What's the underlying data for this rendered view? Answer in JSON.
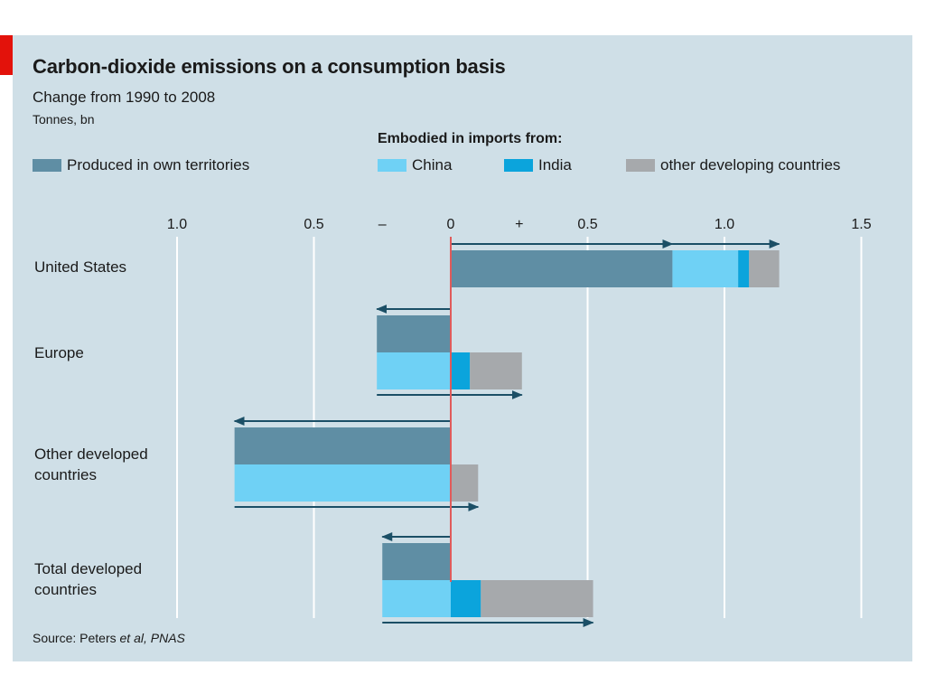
{
  "title": "Carbon-dioxide emissions on a consumption basis",
  "subtitle": "Change from 1990 to 2008",
  "units": "Tonnes, bn",
  "legend_heading": "Embodied in imports from:",
  "source_prefix": "Source: Peters ",
  "source_italic": "et al, PNAS",
  "colors": {
    "background": "#cfdfe7",
    "own": "#5f8ea4",
    "china": "#6fd1f5",
    "india": "#0ba4dc",
    "other": "#a6a9ac",
    "arrow": "#1b4f66",
    "zero_line": "#e05b5b",
    "grid": "#ffffff",
    "accent": "#e3120b"
  },
  "chart_data": {
    "type": "bar",
    "orientation": "horizontal",
    "x_axis": {
      "range": [
        -1.0,
        1.5
      ],
      "ticks": [
        -1.0,
        -0.5,
        0,
        0.5,
        1.0,
        1.5
      ],
      "tick_labels": [
        "1.0",
        "0.5",
        "0",
        "0.5",
        "1.0",
        "1.5"
      ],
      "sign_labels": [
        "–",
        "+"
      ]
    },
    "grid": true,
    "legend_position": "top",
    "series_names": {
      "own": "Produced in own territories",
      "china": "China",
      "india": "India",
      "other": "other developing countries"
    },
    "rows": [
      {
        "label": "United States",
        "own": 0.81,
        "china": 0.24,
        "india": 0.04,
        "other": 0.11,
        "stacked": true
      },
      {
        "label": "Europe",
        "own": -0.27,
        "china": -0.27,
        "india": 0.07,
        "other": 0.19,
        "stacked": false
      },
      {
        "label": "Other developed\ncountries",
        "own": -0.79,
        "china": -0.79,
        "india": 0.0,
        "other": 0.1,
        "stacked": false
      },
      {
        "label": "Total developed\ncountries",
        "own": -0.25,
        "china": -0.25,
        "india": 0.11,
        "other": 0.41,
        "stacked": false
      }
    ]
  }
}
